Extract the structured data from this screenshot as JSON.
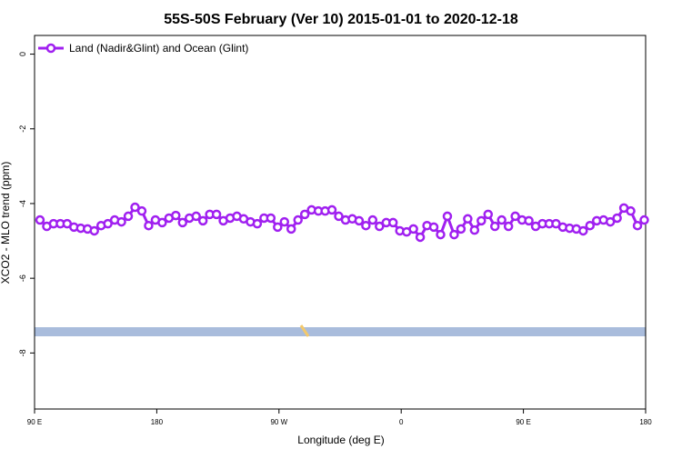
{
  "chart_data": {
    "type": "line",
    "title": "55S-50S February (Ver 10)   2015-01-01 to 2020-12-18",
    "xlabel": "Longitude (deg E)",
    "ylabel": "XCO2 - MLO trend (ppm)",
    "legend_loc": "upper left",
    "xlim": [
      90,
      540
    ],
    "ylim": [
      -9.5,
      0.5
    ],
    "xticks": [
      {
        "value": 90,
        "label": "90 E"
      },
      {
        "value": 180,
        "label": "180"
      },
      {
        "value": 270,
        "label": "90 W"
      },
      {
        "value": 360,
        "label": "0"
      },
      {
        "value": 450,
        "label": "90 E"
      },
      {
        "value": 540,
        "label": "180"
      }
    ],
    "yticks": [
      0,
      -2,
      -4,
      -6,
      -8
    ],
    "x": [
      94,
      99,
      104,
      109,
      114,
      119,
      124,
      129,
      134,
      139,
      144,
      149,
      154,
      159,
      164,
      169,
      174,
      179,
      184,
      189,
      194,
      199,
      204,
      209,
      214,
      219,
      224,
      229,
      234,
      239,
      244,
      249,
      254,
      259,
      264,
      269,
      274,
      279,
      284,
      289,
      294,
      299,
      304,
      309,
      314,
      319,
      324,
      329,
      334,
      339,
      344,
      349,
      354,
      359,
      364,
      369,
      374,
      379,
      384,
      389,
      394,
      399,
      404,
      409,
      414,
      419,
      424,
      429,
      434,
      439,
      444,
      449,
      454,
      459,
      464,
      469,
      474,
      479,
      484,
      489,
      494,
      499,
      504,
      509,
      514,
      519,
      524,
      529,
      534,
      539
    ],
    "series": [
      {
        "name": "Land (Nadir&Glint) and Ocean (Glint)",
        "color": "#a020f0",
        "values": [
          -4.44,
          -4.61,
          -4.54,
          -4.54,
          -4.54,
          -4.63,
          -4.66,
          -4.68,
          -4.73,
          -4.59,
          -4.54,
          -4.44,
          -4.49,
          -4.34,
          -4.1,
          -4.2,
          -4.59,
          -4.44,
          -4.51,
          -4.39,
          -4.32,
          -4.51,
          -4.39,
          -4.34,
          -4.46,
          -4.29,
          -4.29,
          -4.46,
          -4.39,
          -4.34,
          -4.41,
          -4.49,
          -4.54,
          -4.39,
          -4.39,
          -4.63,
          -4.49,
          -4.68,
          -4.44,
          -4.29,
          -4.17,
          -4.2,
          -4.2,
          -4.17,
          -4.34,
          -4.44,
          -4.41,
          -4.46,
          -4.59,
          -4.44,
          -4.61,
          -4.51,
          -4.51,
          -4.73,
          -4.76,
          -4.68,
          -4.9,
          -4.59,
          -4.63,
          -4.83,
          -4.34,
          -4.83,
          -4.68,
          -4.41,
          -4.71,
          -4.46,
          -4.29,
          -4.61,
          -4.44,
          -4.61,
          -4.34,
          -4.44,
          -4.46,
          -4.61,
          -4.54,
          -4.54,
          -4.54,
          -4.63,
          -4.66,
          -4.68,
          -4.73,
          -4.59,
          -4.46,
          -4.44,
          -4.49,
          -4.39,
          -4.12,
          -4.2,
          -4.59,
          -4.44
        ]
      }
    ]
  }
}
